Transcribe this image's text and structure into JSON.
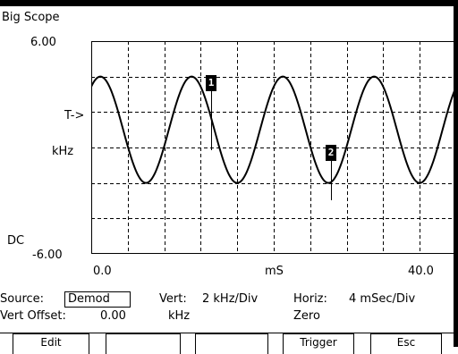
{
  "window": {
    "title": "Big Scope"
  },
  "plot": {
    "y_top_label": "6.00",
    "y_bottom_label": "-6.00",
    "trigger_label": "T->",
    "unit_label": "kHz",
    "coupling_label": "DC",
    "x_left_label": "0.0",
    "x_center_label": "mS",
    "x_right_label": "40.0",
    "markers": [
      {
        "label": "1"
      },
      {
        "label": "2"
      }
    ]
  },
  "chart_data": {
    "type": "line",
    "title": "",
    "xlabel": "mS",
    "ylabel": "kHz",
    "xlim": [
      0,
      40
    ],
    "ylim": [
      -6,
      6
    ],
    "grid": true,
    "series": [
      {
        "shape": "sine",
        "amplitude": 3,
        "offset": 1,
        "period": 10,
        "x": [
          0,
          1,
          2.5,
          5,
          7.5,
          10,
          12.5,
          15,
          17.5,
          20,
          22.5,
          25,
          27.5,
          30,
          32.5,
          35,
          37.5,
          40
        ],
        "y": [
          3.8,
          4,
          2.5,
          -2,
          1,
          4,
          1,
          -2,
          1,
          4,
          1,
          -2,
          1,
          4,
          1,
          -2,
          1,
          4
        ]
      }
    ]
  },
  "settings": {
    "source_label": "Source:",
    "source_value": "Demod",
    "vert_label": "Vert:",
    "vert_value": "2 kHz/Div",
    "horiz_label": "Horiz:",
    "horiz_value": "4 mSec/Div",
    "vert_offset_label": "Vert Offset:",
    "vert_offset_value": "0.00",
    "vert_offset_unit": "kHz",
    "zero_label": "Zero"
  },
  "softkeys": [
    "Edit",
    "",
    "",
    "Trigger",
    "Esc"
  ]
}
